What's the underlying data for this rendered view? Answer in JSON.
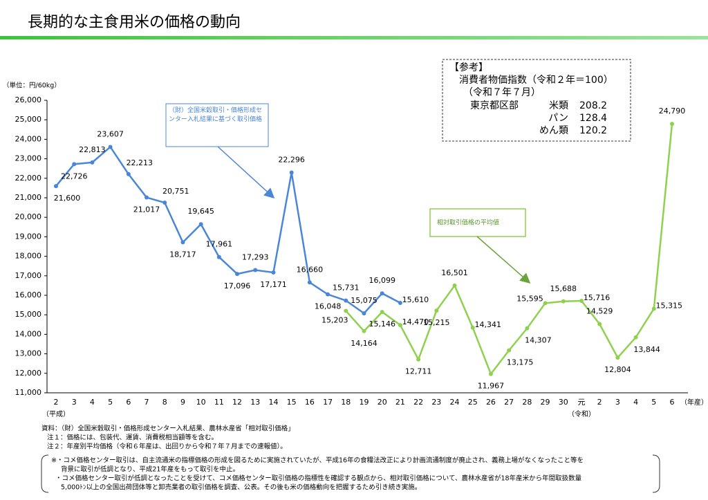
{
  "chart_data": {
    "type": "line",
    "title": "長期的な主食用米の価格の動向",
    "y_unit": "（単位：円/60kg）",
    "categories": [
      "2",
      "3",
      "4",
      "5",
      "6",
      "7",
      "8",
      "9",
      "10",
      "11",
      "12",
      "13",
      "14",
      "15",
      "16",
      "17",
      "18",
      "19",
      "20",
      "21",
      "22",
      "23",
      "24",
      "25",
      "26",
      "27",
      "28",
      "29",
      "30",
      "元",
      "2",
      "3",
      "4",
      "5",
      "6"
    ],
    "era_labels": [
      {
        "index": 0,
        "label": "（平成）"
      },
      {
        "index": 29,
        "label": "（令和）"
      }
    ],
    "x_unit": "（年産）",
    "ylim": [
      11000,
      26000
    ],
    "yticks": [
      {
        "value": 11000,
        "label": "11,000"
      },
      {
        "value": 12000,
        "label": "12,000"
      },
      {
        "value": 13000,
        "label": "13,000"
      },
      {
        "value": 14000,
        "label": "14,000"
      },
      {
        "value": 15000,
        "label": "15,000"
      },
      {
        "value": 16000,
        "label": "16,000"
      },
      {
        "value": 17000,
        "label": "17,000"
      },
      {
        "value": 18000,
        "label": "18,000"
      },
      {
        "value": 19000,
        "label": "19,000"
      },
      {
        "value": 20000,
        "label": "20,000"
      },
      {
        "value": 21000,
        "label": "21,000"
      },
      {
        "value": 22000,
        "label": "22,000"
      },
      {
        "value": 23000,
        "label": "23,000"
      },
      {
        "value": 24000,
        "label": "24,000"
      },
      {
        "value": 25000,
        "label": "25,000"
      },
      {
        "value": 26000,
        "label": "26,000"
      }
    ],
    "series": [
      {
        "name": "（財）全国米穀取引・価格形成センター入札結果に基づく取引価格",
        "color": "#4a86d8",
        "values": [
          21600,
          22726,
          22813,
          23607,
          22213,
          21017,
          20751,
          18717,
          19645,
          17961,
          17096,
          17293,
          17171,
          22296,
          16660,
          16048,
          15731,
          15075,
          16099,
          15610,
          null,
          null,
          null,
          null,
          null,
          null,
          null,
          null,
          null,
          null,
          null,
          null,
          null,
          null,
          null
        ],
        "value_labels": [
          "21,600",
          "22,726",
          "22,813",
          "23,607",
          "22,213",
          "21,017",
          "20,751",
          "18,717",
          "19,645",
          "17,961",
          "17,096",
          "17,293",
          "17,171",
          "22,296",
          "16,660",
          "16,048",
          "15,731",
          "15,075",
          "16,099",
          "15,610",
          null,
          null,
          null,
          null,
          null,
          null,
          null,
          null,
          null,
          null,
          null,
          null,
          null,
          null,
          null
        ]
      },
      {
        "name": "相対取引価格の平均値",
        "color": "#8fd14f",
        "values": [
          null,
          null,
          null,
          null,
          null,
          null,
          null,
          null,
          null,
          null,
          null,
          null,
          null,
          null,
          null,
          null,
          15203,
          14164,
          15146,
          14470,
          12711,
          15215,
          16501,
          14341,
          11967,
          13175,
          14307,
          15595,
          15688,
          15716,
          14529,
          12804,
          13844,
          15315,
          24790
        ],
        "value_labels": [
          null,
          null,
          null,
          null,
          null,
          null,
          null,
          null,
          null,
          null,
          null,
          null,
          null,
          null,
          null,
          null,
          "15,203",
          "14,164",
          "15,146",
          "14,470",
          "12,711",
          "15,215",
          "16,501",
          "14,341",
          "11,967",
          "13,175",
          "14,307",
          "15,595",
          "15,688",
          "15,716",
          "14,529",
          "12,804",
          "13,844",
          "15,315",
          "24,790"
        ]
      }
    ],
    "reference": {
      "title": "【参考】",
      "lines": [
        "消費者物価指数（令和２年＝100）",
        "（令和７年７月）"
      ],
      "region": "東京都区部",
      "items": [
        {
          "name": "米類",
          "value": "208.2"
        },
        {
          "name": "パン",
          "value": "128.4"
        },
        {
          "name": "めん類",
          "value": "120.2"
        }
      ]
    },
    "sources": [
      "資料：（財）全国米穀取引・価格形成センター入札結果、農林水産省「相対取引価格」",
      "注１：価格には、包装代、運賃、消費税相当額等を含む。",
      "注２：年産別平均価格（令和６年産は、出回りから令和７年７月までの速報値）。"
    ],
    "notes": [
      "※・コメ価格センター取引は、自主流通米の指標価格の形成を図るために実施されていたが、平成16年の食糧法改正により計画流通制度が廃止され、義務上場がなくなったこと等を",
      "背景に取引が低調となり、平成21年産をもって取引を中止。",
      "・コメ価格センター取引が低調となったことを受けて、コメ価格センター取引価格の指標性を確認する観点から、相対取引価格について、農林水産省が18年産米から年間取扱数量",
      "5,000ﾄﾝ以上の全国出荷団体等と卸売業者の取引価格を調査、公表。その後も米の価格動向を把握するため引き続き実施。"
    ]
  }
}
